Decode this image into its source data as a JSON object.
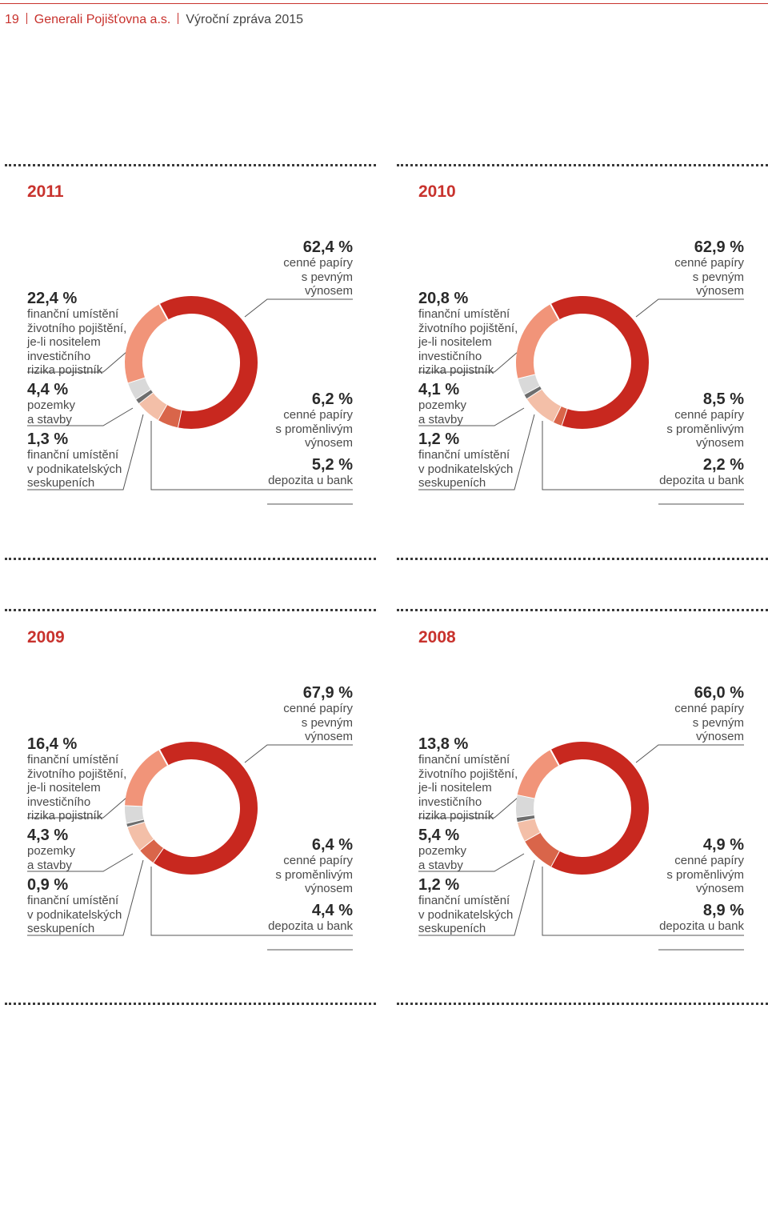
{
  "header": {
    "page_number": "19",
    "company": "Generali Pojišťovna a.s.",
    "report": "Výroční zpráva 2015"
  },
  "colors": {
    "accent": "#c8322d",
    "fixed_income": "#c8281f",
    "unit_linked": "#f19479",
    "real_estate": "#d9d9d9",
    "group_investments": "#6e6e6e",
    "variable_income": "#f3bfa8",
    "bank_deposits": "#d9654a"
  },
  "chart_data": [
    {
      "type": "pie",
      "year": "2011",
      "donut": true,
      "categories": [
        "cenné papíry s pevným výnosem",
        "finanční umístění životního pojištění, je-li nositelem investičního rizika pojistník",
        "pozemky a stavby",
        "finanční umístění v podnikatelských seskupeních",
        "cenné papíry s proměnlivým výnosem",
        "depozita u bank"
      ],
      "values": [
        62.4,
        22.4,
        4.4,
        1.3,
        6.2,
        5.2
      ],
      "labels": {
        "fixed": {
          "pct": "62,4 %",
          "text": "cenné papíry\ns pevným\nvýnosem"
        },
        "unit_linked": {
          "pct": "22,4 %",
          "text": "finanční umístění\nživotního pojištění,\nje-li nositelem\ninvestičního\nrizika pojistník"
        },
        "real_estate": {
          "pct": "4,4 %",
          "text": "pozemky\na stavby"
        },
        "group": {
          "pct": "1,3 %",
          "text": "finanční umístění\nv podnikatelských\nseskupeních"
        },
        "variable": {
          "pct": "6,2 %",
          "text": "cenné papíry\ns proměnlivým\nvýnosem"
        },
        "deposits": {
          "pct": "5,2 %",
          "text": "depozita u bank"
        }
      }
    },
    {
      "type": "pie",
      "year": "2010",
      "donut": true,
      "categories": [
        "cenné papíry s pevným výnosem",
        "finanční umístění životního pojištění, je-li nositelem investičního rizika pojistník",
        "pozemky a stavby",
        "finanční umístění v podnikatelských seskupeních",
        "cenné papíry s proměnlivým výnosem",
        "depozita u bank"
      ],
      "values": [
        62.9,
        20.8,
        4.1,
        1.2,
        8.5,
        2.2
      ],
      "labels": {
        "fixed": {
          "pct": "62,9 %",
          "text": "cenné papíry\ns pevným\nvýnosem"
        },
        "unit_linked": {
          "pct": "20,8 %",
          "text": "finanční umístění\nživotního pojištění,\nje-li nositelem\ninvestičního\nrizika pojistník"
        },
        "real_estate": {
          "pct": "4,1 %",
          "text": "pozemky\na stavby"
        },
        "group": {
          "pct": "1,2 %",
          "text": "finanční umístění\nv podnikatelských\nseskupeních"
        },
        "variable": {
          "pct": "8,5 %",
          "text": "cenné papíry\ns proměnlivým\nvýnosem"
        },
        "deposits": {
          "pct": "2,2 %",
          "text": "depozita u bank"
        }
      }
    },
    {
      "type": "pie",
      "year": "2009",
      "donut": true,
      "categories": [
        "cenné papíry s pevným výnosem",
        "finanční umístění životního pojištění, je-li nositelem investičního rizika pojistník",
        "pozemky a stavby",
        "finanční umístění v podnikatelských seskupeních",
        "cenné papíry s proměnlivým výnosem",
        "depozita u bank"
      ],
      "values": [
        67.9,
        16.4,
        4.3,
        0.9,
        6.4,
        4.4
      ],
      "labels": {
        "fixed": {
          "pct": "67,9 %",
          "text": "cenné papíry\ns pevným\nvýnosem"
        },
        "unit_linked": {
          "pct": "16,4 %",
          "text": "finanční umístění\nživotního pojištění,\nje-li nositelem\ninvestičního\nrizika pojistník"
        },
        "real_estate": {
          "pct": "4,3 %",
          "text": "pozemky\na stavby"
        },
        "group": {
          "pct": "0,9 %",
          "text": "finanční umístění\nv podnikatelských\nseskupeních"
        },
        "variable": {
          "pct": "6,4 %",
          "text": "cenné papíry\ns proměnlivým\nvýnosem"
        },
        "deposits": {
          "pct": "4,4 %",
          "text": "depozita u bank"
        }
      }
    },
    {
      "type": "pie",
      "year": "2008",
      "donut": true,
      "categories": [
        "cenné papíry s pevným výnosem",
        "finanční umístění životního pojištění, je-li nositelem investičního rizika pojistník",
        "pozemky a stavby",
        "finanční umístění v podnikatelských seskupeních",
        "cenné papíry s proměnlivým výnosem",
        "depozita u bank"
      ],
      "values": [
        66.0,
        13.8,
        5.4,
        1.2,
        4.9,
        8.9
      ],
      "labels": {
        "fixed": {
          "pct": "66,0 %",
          "text": "cenné papíry\ns pevným\nvýnosem"
        },
        "unit_linked": {
          "pct": "13,8 %",
          "text": "finanční umístění\nživotního pojištění,\nje-li nositelem\ninvestičního\nrizika pojistník"
        },
        "real_estate": {
          "pct": "5,4 %",
          "text": "pozemky\na stavby"
        },
        "group": {
          "pct": "1,2 %",
          "text": "finanční umístění\nv podnikatelských\nseskupeních"
        },
        "variable": {
          "pct": "4,9 %",
          "text": "cenné papíry\ns proměnlivým\nvýnosem"
        },
        "deposits": {
          "pct": "8,9 %",
          "text": "depozita u bank"
        }
      }
    }
  ]
}
